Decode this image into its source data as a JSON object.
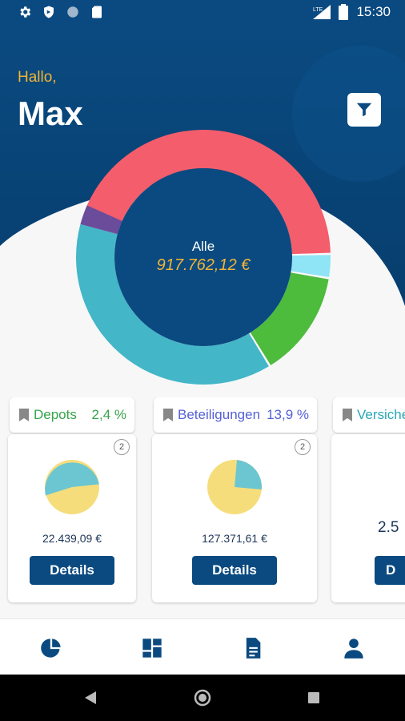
{
  "status_bar": {
    "time": "15:30",
    "network": "LTE"
  },
  "header": {
    "greeting": "Hallo,",
    "username": "Max"
  },
  "summary": {
    "label": "Alle",
    "total": "917.762,12 €"
  },
  "cards": [
    {
      "title": "Depots",
      "percent": "2,4 %",
      "badge": "2",
      "amount": "22.439,09 €",
      "button": "Details",
      "color": "#37a44a"
    },
    {
      "title": "Beteiligungen",
      "percent": "13,9 %",
      "badge": "2",
      "amount": "127.371,61 €",
      "button": "Details",
      "color": "#5561d6"
    },
    {
      "title": "Versiche",
      "amount": "2.5",
      "button": "D",
      "color": "#27a6b5"
    }
  ],
  "colors": {
    "primary": "#0a4a80",
    "accent": "#f2b436",
    "red": "#f45d6b",
    "teal": "#43b6c8",
    "green": "#4dbb3c",
    "lightblue": "#8fe4f5",
    "purple": "#6b4c9a",
    "pie_teal": "#6cc6d1",
    "pie_yellow": "#f6dd7c"
  },
  "bottom_nav": [
    "pie-chart-icon",
    "dashboard-icon",
    "document-icon",
    "person-icon"
  ]
}
